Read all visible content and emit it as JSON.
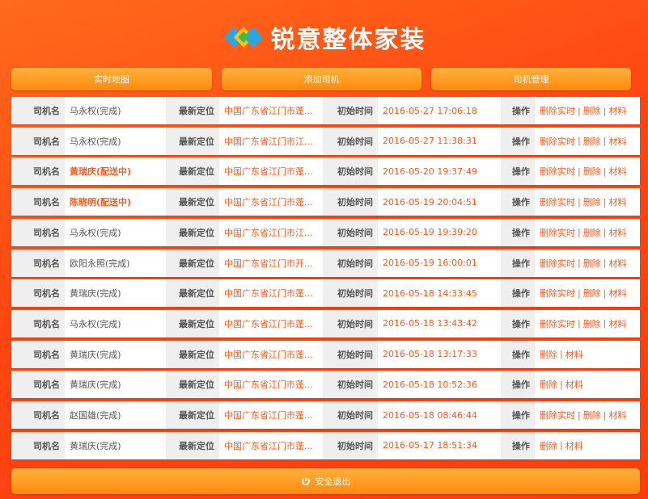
{
  "header": {
    "title": "锐意整体家装"
  },
  "nav": [
    "实时地图",
    "添加司机",
    "司机管理"
  ],
  "labels": {
    "driver": "司机名",
    "location": "最新定位",
    "time": "初始时间",
    "actions": "操作"
  },
  "separator": "|",
  "rows": [
    {
      "driver": "马永权(完成)",
      "highlight": false,
      "location": "中国广东省江门市蓬...",
      "time": "2016-05-27 17:06:18",
      "actions": [
        "删除实时",
        "删除",
        "材料"
      ]
    },
    {
      "driver": "马永权(完成)",
      "highlight": false,
      "location": "中国广东省江门市江...",
      "time": "2016-05-27 11:38:31",
      "actions": [
        "删除实时",
        "删除",
        "材料"
      ]
    },
    {
      "driver": "黄瑞庆(配送中)",
      "highlight": true,
      "location": "中国广东省江门市蓬...",
      "time": "2016-05-20 19:37:49",
      "actions": [
        "删除实时",
        "删除",
        "材料"
      ]
    },
    {
      "driver": "陈晓明(配送中)",
      "highlight": true,
      "location": "中国广东省江门市蓬...",
      "time": "2016-05-19 20:04:51",
      "actions": [
        "删除实时",
        "删除",
        "材料"
      ]
    },
    {
      "driver": "马永权(完成)",
      "highlight": false,
      "location": "中国广东省江门市江...",
      "time": "2016-05-19 19:39:20",
      "actions": [
        "删除实时",
        "删除",
        "材料"
      ]
    },
    {
      "driver": "欧阳永照(完成)",
      "highlight": false,
      "location": "中国广东省江门市开...",
      "time": "2016-05-19 16:00:01",
      "actions": [
        "删除实时",
        "删除",
        "材料"
      ]
    },
    {
      "driver": "黄瑞庆(完成)",
      "highlight": false,
      "location": "中国广东省江门市蓬...",
      "time": "2016-05-18 14:33:45",
      "actions": [
        "删除实时",
        "删除",
        "材料"
      ]
    },
    {
      "driver": "马永权(完成)",
      "highlight": false,
      "location": "中国广东省江门市蓬...",
      "time": "2016-05-18 13:43:42",
      "actions": [
        "删除实时",
        "删除",
        "材料"
      ]
    },
    {
      "driver": "黄瑞庆(完成)",
      "highlight": false,
      "location": "中国广东省江门市蓬...",
      "time": "2016-05-18 13:17:33",
      "actions": [
        "删除",
        "材料"
      ]
    },
    {
      "driver": "黄瑞庆(完成)",
      "highlight": false,
      "location": "中国广东省江门市蓬...",
      "time": "2016-05-18 10:52:36",
      "actions": [
        "删除",
        "材料"
      ]
    },
    {
      "driver": "赵国雄(完成)",
      "highlight": false,
      "location": "中国广东省江门市蓬...",
      "time": "2016-05-18 08:46:44",
      "actions": [
        "删除实时",
        "删除",
        "材料"
      ]
    },
    {
      "driver": "黄瑞庆(完成)",
      "highlight": false,
      "location": "中国广东省江门市蓬...",
      "time": "2016-05-17 18:51:34",
      "actions": [
        "删除",
        "材料"
      ]
    }
  ],
  "footer": {
    "logout": "安全退出"
  }
}
